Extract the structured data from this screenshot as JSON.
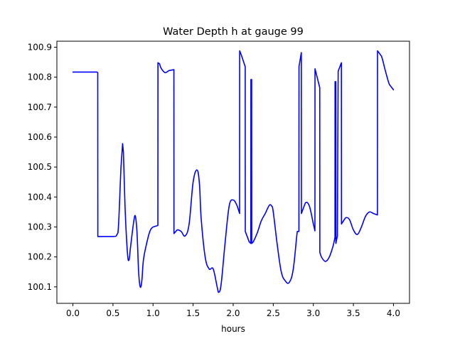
{
  "chart_data": {
    "type": "line",
    "title": "Water Depth h at gauge 99",
    "xlabel": "hours",
    "ylabel": "",
    "xlim": [
      -0.2,
      4.2
    ],
    "ylim": [
      100.045,
      100.92
    ],
    "xticks": [
      {
        "value": 0.0,
        "label": "0.0"
      },
      {
        "value": 0.5,
        "label": "0.5"
      },
      {
        "value": 1.0,
        "label": "1.0"
      },
      {
        "value": 1.5,
        "label": "1.5"
      },
      {
        "value": 2.0,
        "label": "2.0"
      },
      {
        "value": 2.5,
        "label": "2.5"
      },
      {
        "value": 3.0,
        "label": "3.0"
      },
      {
        "value": 3.5,
        "label": "3.5"
      },
      {
        "value": 4.0,
        "label": "4.0"
      }
    ],
    "yticks": [
      {
        "value": 100.1,
        "label": "100.1"
      },
      {
        "value": 100.2,
        "label": "100.2"
      },
      {
        "value": 100.3,
        "label": "100.3"
      },
      {
        "value": 100.4,
        "label": "100.4"
      },
      {
        "value": 100.5,
        "label": "100.5"
      },
      {
        "value": 100.6,
        "label": "100.6"
      },
      {
        "value": 100.7,
        "label": "100.7"
      },
      {
        "value": 100.8,
        "label": "100.8"
      },
      {
        "value": 100.9,
        "label": "100.9"
      }
    ],
    "grid": false,
    "series": [
      {
        "color": "#0000ff",
        "x": [
          0.0,
          0.3,
          0.31,
          0.311,
          0.5,
          0.55,
          0.57,
          0.6,
          0.62,
          0.63,
          0.65,
          0.68,
          0.7,
          0.72,
          0.76,
          0.78,
          0.8,
          0.82,
          0.84,
          0.86,
          0.88,
          0.92,
          0.96,
          1.0,
          1.06,
          1.061,
          1.08,
          1.1,
          1.15,
          1.2,
          1.26,
          1.261,
          1.3,
          1.35,
          1.4,
          1.45,
          1.5,
          1.55,
          1.58,
          1.6,
          1.65,
          1.7,
          1.75,
          1.8,
          1.82,
          1.85,
          1.9,
          1.95,
          2.0,
          2.05,
          2.08,
          2.081,
          2.1,
          2.15,
          2.151,
          2.2,
          2.22,
          2.221,
          2.23,
          2.231,
          2.25,
          2.3,
          2.35,
          2.4,
          2.45,
          2.48,
          2.5,
          2.55,
          2.6,
          2.65,
          2.7,
          2.75,
          2.8,
          2.82,
          2.821,
          2.85,
          2.851,
          2.9,
          2.95,
          3.0,
          3.02,
          3.021,
          3.08,
          3.081,
          3.1,
          3.15,
          3.2,
          3.25,
          3.27,
          3.271,
          3.28,
          3.281,
          3.3,
          3.31,
          3.35,
          3.351,
          3.4,
          3.45,
          3.5,
          3.55,
          3.6,
          3.65,
          3.7,
          3.75,
          3.8,
          3.801,
          3.85,
          3.9,
          3.95,
          4.0
        ],
        "y": [
          100.817,
          100.817,
          100.815,
          100.268,
          100.268,
          100.275,
          100.31,
          100.5,
          100.578,
          100.55,
          100.37,
          100.215,
          100.19,
          100.235,
          100.32,
          100.335,
          100.28,
          100.15,
          100.1,
          100.12,
          100.19,
          100.245,
          100.285,
          100.3,
          100.305,
          100.848,
          100.845,
          100.83,
          100.815,
          100.822,
          100.825,
          100.278,
          100.29,
          100.285,
          100.27,
          100.31,
          100.45,
          100.49,
          100.44,
          100.33,
          100.2,
          100.16,
          100.16,
          100.1,
          100.082,
          100.11,
          100.25,
          100.37,
          100.39,
          100.37,
          100.345,
          100.888,
          100.875,
          100.835,
          100.285,
          100.25,
          100.245,
          100.792,
          100.792,
          100.245,
          100.25,
          100.28,
          100.32,
          100.345,
          100.372,
          100.37,
          100.35,
          100.24,
          100.15,
          100.12,
          100.115,
          100.16,
          100.285,
          100.285,
          100.835,
          100.882,
          100.345,
          100.38,
          100.37,
          100.31,
          100.287,
          100.828,
          100.765,
          100.215,
          100.2,
          100.185,
          100.2,
          100.24,
          100.265,
          100.785,
          100.785,
          100.245,
          100.27,
          100.82,
          100.848,
          100.31,
          100.33,
          100.325,
          100.29,
          100.275,
          100.3,
          100.335,
          100.35,
          100.345,
          100.34,
          100.888,
          100.87,
          100.82,
          100.775,
          100.758
        ]
      }
    ]
  }
}
